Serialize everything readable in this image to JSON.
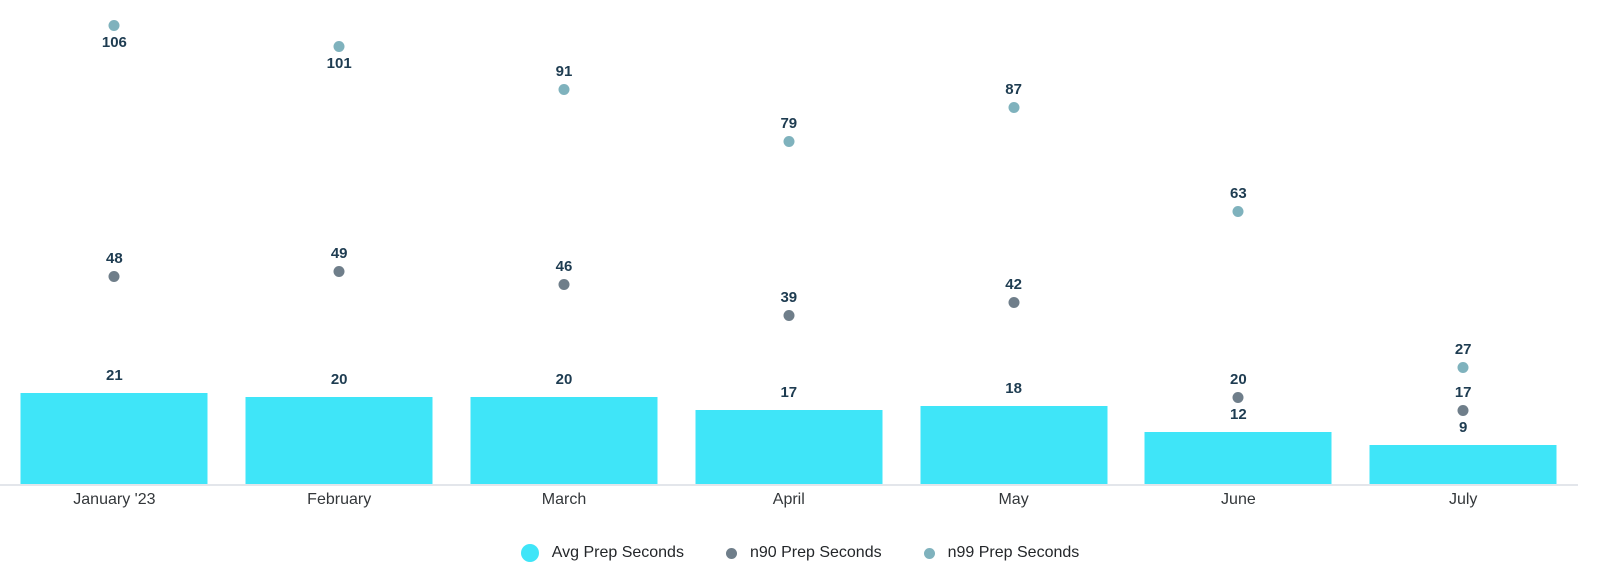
{
  "chart_data": {
    "type": "bar",
    "subtype": "bar-with-point-overlays",
    "title": "",
    "xlabel": "",
    "ylabel": "",
    "categories": [
      "January '23",
      "February",
      "March",
      "April",
      "May",
      "June",
      "July"
    ],
    "series": [
      {
        "name": "Avg Prep Seconds",
        "mark": "bar",
        "color": "#3FE5F8",
        "values": [
          21,
          20,
          20,
          17,
          18,
          12,
          9
        ]
      },
      {
        "name": "n90 Prep Seconds",
        "mark": "point",
        "color": "#6F7E8A",
        "values": [
          48,
          49,
          46,
          39,
          42,
          20,
          17
        ]
      },
      {
        "name": "n99 Prep Seconds",
        "mark": "point",
        "color": "#7FB2BD",
        "values": [
          106,
          101,
          91,
          79,
          87,
          63,
          27
        ]
      }
    ],
    "ylim": [
      0,
      112
    ],
    "grid": false,
    "y_axis_shown": false,
    "value_labels_shown": true,
    "legend_position": "bottom"
  },
  "styles": {
    "background": "#FFFFFF",
    "value_label_color": "#1E3C51",
    "axis_label_color": "#33373A",
    "legend_text_color": "#232629",
    "axis_line_color": "#E3E6EB"
  }
}
